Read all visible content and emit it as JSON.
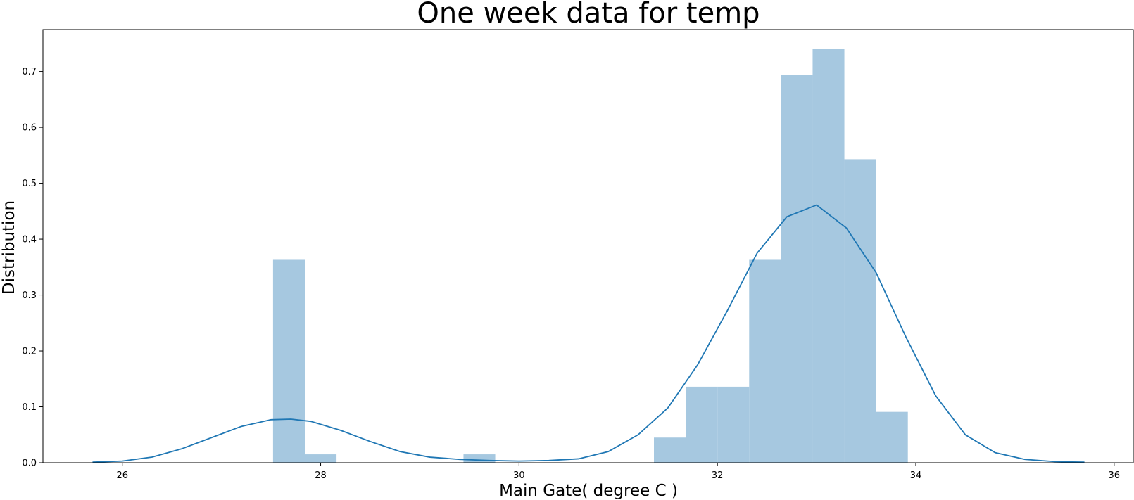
{
  "chart_data": {
    "type": "histogram",
    "title": "One week data for temp",
    "xlabel": "Main Gate( degree C )",
    "ylabel": "Distribution",
    "xlim": [
      25.2,
      36.2
    ],
    "ylim": [
      0,
      0.775
    ],
    "x_ticks": [
      26,
      28,
      30,
      32,
      34,
      36
    ],
    "y_ticks": [
      0.0,
      0.1,
      0.2,
      0.3,
      0.4,
      0.5,
      0.6,
      0.7
    ],
    "grid": false,
    "bar_color": "#a6c8e0",
    "line_color": "#1f77b4",
    "bins": [
      {
        "x0": 27.52,
        "x1": 27.84,
        "height": 0.363
      },
      {
        "x0": 27.84,
        "x1": 28.16,
        "height": 0.015
      },
      {
        "x0": 29.44,
        "x1": 29.76,
        "height": 0.015
      },
      {
        "x0": 31.36,
        "x1": 31.68,
        "height": 0.045
      },
      {
        "x0": 31.68,
        "x1": 32.0,
        "height": 0.136
      },
      {
        "x0": 32.0,
        "x1": 32.32,
        "height": 0.136
      },
      {
        "x0": 32.32,
        "x1": 32.64,
        "height": 0.363
      },
      {
        "x0": 32.64,
        "x1": 32.96,
        "height": 0.694
      },
      {
        "x0": 32.96,
        "x1": 33.28,
        "height": 0.74
      },
      {
        "x0": 33.28,
        "x1": 33.6,
        "height": 0.543
      },
      {
        "x0": 33.6,
        "x1": 33.92,
        "height": 0.091
      }
    ],
    "kde": {
      "x": [
        25.7,
        26.0,
        26.3,
        26.6,
        26.9,
        27.2,
        27.5,
        27.7,
        27.9,
        28.2,
        28.5,
        28.8,
        29.1,
        29.4,
        29.7,
        30.0,
        30.3,
        30.6,
        30.9,
        31.2,
        31.5,
        31.8,
        32.1,
        32.4,
        32.7,
        33.0,
        33.3,
        33.6,
        33.9,
        34.2,
        34.5,
        34.8,
        35.1,
        35.4,
        35.7
      ],
      "y": [
        0.001,
        0.003,
        0.01,
        0.025,
        0.045,
        0.065,
        0.077,
        0.078,
        0.074,
        0.058,
        0.038,
        0.02,
        0.01,
        0.006,
        0.004,
        0.003,
        0.004,
        0.007,
        0.02,
        0.05,
        0.098,
        0.175,
        0.272,
        0.375,
        0.44,
        0.461,
        0.42,
        0.34,
        0.225,
        0.12,
        0.05,
        0.018,
        0.006,
        0.002,
        0.001
      ]
    }
  }
}
